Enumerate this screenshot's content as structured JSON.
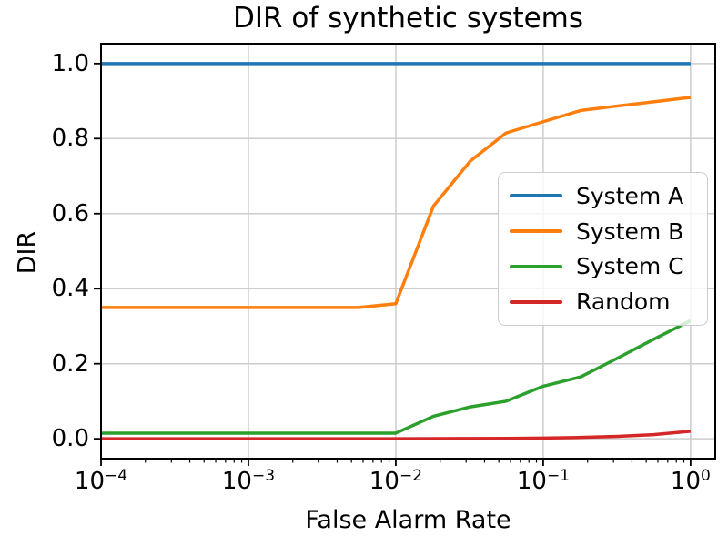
{
  "title": "DIR of synthetic systems",
  "chart_data": {
    "type": "line",
    "title": "DIR of synthetic systems",
    "xlabel": "False Alarm Rate",
    "ylabel": "DIR",
    "x_scale": "log",
    "grid": true,
    "legend_position": "center right",
    "xlim": [
      0.0001,
      1.47
    ],
    "ylim": [
      -0.053,
      1.053
    ],
    "x_ticks": [
      {
        "value": 0.0001,
        "mantissa": "10",
        "exponent": "−4"
      },
      {
        "value": 0.001,
        "mantissa": "10",
        "exponent": "−3"
      },
      {
        "value": 0.01,
        "mantissa": "10",
        "exponent": "−2"
      },
      {
        "value": 0.1,
        "mantissa": "10",
        "exponent": "−1"
      },
      {
        "value": 1.0,
        "mantissa": "10",
        "exponent": "0"
      }
    ],
    "y_ticks": [
      {
        "value": 0.0,
        "label": "0.0"
      },
      {
        "value": 0.2,
        "label": "0.2"
      },
      {
        "value": 0.4,
        "label": "0.4"
      },
      {
        "value": 0.6,
        "label": "0.6"
      },
      {
        "value": 0.8,
        "label": "0.8"
      },
      {
        "value": 1.0,
        "label": "1.0"
      }
    ],
    "x": [
      0.0001,
      0.00018,
      0.00032,
      0.00056,
      0.001,
      0.0018,
      0.0032,
      0.0056,
      0.01,
      0.018,
      0.032,
      0.056,
      0.1,
      0.18,
      0.32,
      0.56,
      1.0
    ],
    "series": [
      {
        "name": "System A",
        "color": "#1f77b4",
        "values": [
          1.0,
          1.0,
          1.0,
          1.0,
          1.0,
          1.0,
          1.0,
          1.0,
          1.0,
          1.0,
          1.0,
          1.0,
          1.0,
          1.0,
          1.0,
          1.0,
          1.0
        ]
      },
      {
        "name": "System B",
        "color": "#ff7f0e",
        "values": [
          0.35,
          0.35,
          0.35,
          0.35,
          0.35,
          0.35,
          0.35,
          0.35,
          0.36,
          0.62,
          0.74,
          0.815,
          0.845,
          0.875,
          0.887,
          0.898,
          0.91
        ]
      },
      {
        "name": "System C",
        "color": "#2ca02c",
        "values": [
          0.015,
          0.015,
          0.015,
          0.015,
          0.015,
          0.015,
          0.015,
          0.015,
          0.015,
          0.06,
          0.085,
          0.1,
          0.14,
          0.165,
          0.215,
          0.265,
          0.315
        ]
      },
      {
        "name": "Random",
        "color": "#d62728",
        "values": [
          0.0,
          0.0,
          0.0,
          0.0,
          0.0,
          0.0,
          0.0,
          0.0,
          0.0002,
          0.0004,
          0.0007,
          0.0011,
          0.002,
          0.0036,
          0.0064,
          0.011,
          0.02
        ]
      }
    ],
    "style": {
      "grid_color": "#cdcdcd",
      "spine_color": "#000000",
      "tick_color": "#000000",
      "line_width": 3.5
    }
  }
}
